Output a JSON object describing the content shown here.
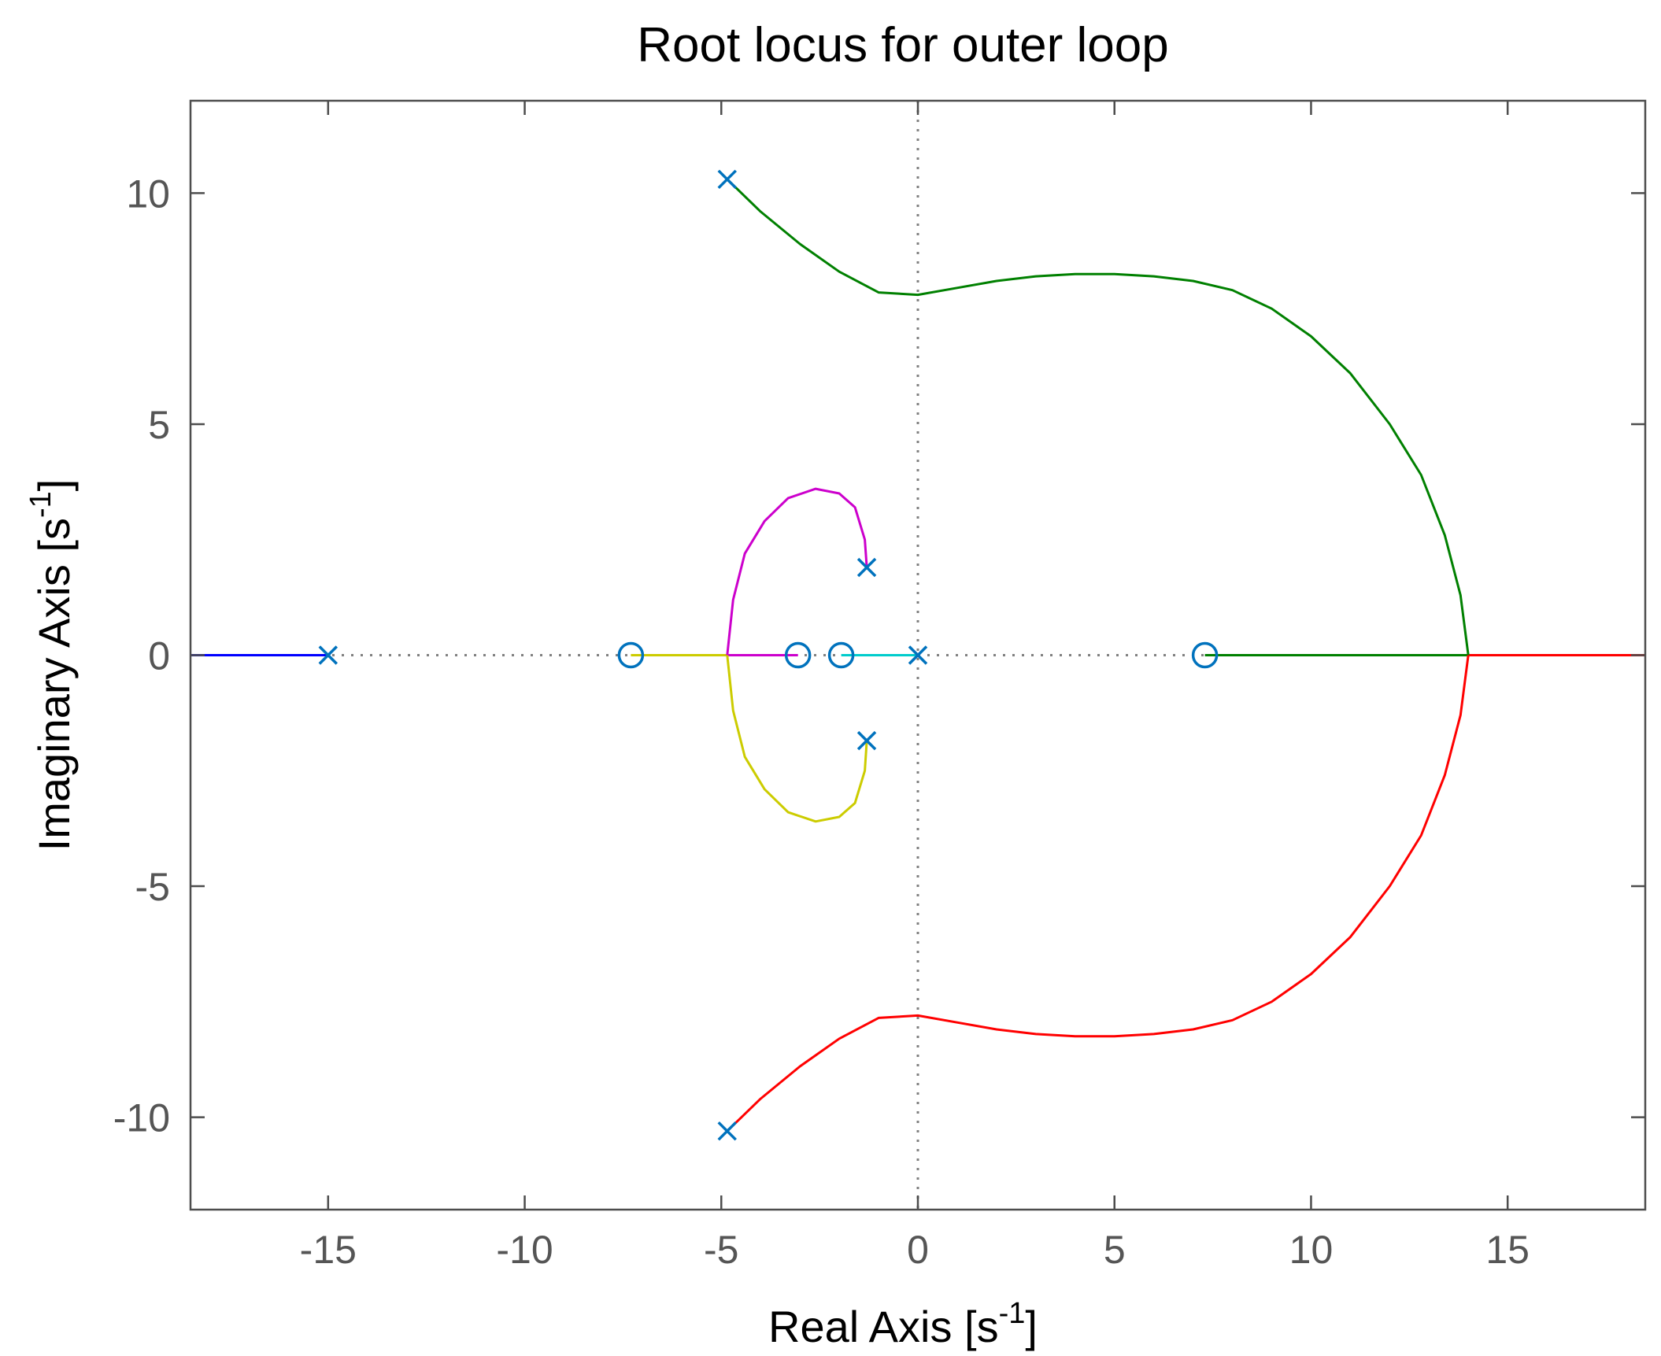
{
  "chart_data": {
    "type": "scatter",
    "title": "Root locus for outer loop",
    "xlabel": {
      "base": "Real Axis [s",
      "exponent": "-1",
      "suffix": "]"
    },
    "ylabel": {
      "base": "Imaginary Axis [s",
      "exponent": "-1",
      "suffix": "]"
    },
    "xlim": [
      -18.5,
      18.5
    ],
    "ylim": [
      -12,
      12
    ],
    "xticks": [
      -15,
      -10,
      -5,
      0,
      5,
      10,
      15
    ],
    "yticks": [
      -10,
      -5,
      0,
      5,
      10
    ],
    "xtick_labels": [
      "-15",
      "-10",
      "-5",
      "0",
      "5",
      "10",
      "15"
    ],
    "ytick_labels": [
      "-10",
      "-5",
      "0",
      "5",
      "10"
    ],
    "grid": false,
    "poles": [
      {
        "x": -15,
        "y": 0
      },
      {
        "x": -4.85,
        "y": 10.3
      },
      {
        "x": -4.85,
        "y": -10.3
      },
      {
        "x": -1.3,
        "y": 1.9
      },
      {
        "x": -1.3,
        "y": -1.85
      },
      {
        "x": 0,
        "y": 0
      }
    ],
    "zeros": [
      {
        "x": -7.3,
        "y": 0
      },
      {
        "x": -3.05,
        "y": 0
      },
      {
        "x": -1.95,
        "y": 0
      },
      {
        "x": 7.3,
        "y": 0
      }
    ],
    "marker_color": "#0072BD",
    "zero_axis_color": "#808080",
    "branches": [
      {
        "color": "#0000ff",
        "x": [
          -15,
          -18.5
        ],
        "y": [
          0,
          0
        ]
      },
      {
        "color": "#cccc00",
        "x": [
          -7.3,
          -4.85
        ],
        "y": [
          0,
          0
        ]
      },
      {
        "color": "#cc00cc",
        "x": [
          -4.85,
          -3.05
        ],
        "y": [
          0,
          0
        ]
      },
      {
        "color": "#00cccc",
        "x": [
          0,
          -1.95
        ],
        "y": [
          0,
          0
        ]
      },
      {
        "color": "#008000",
        "x": [
          7.3,
          14
        ],
        "y": [
          0,
          0
        ]
      },
      {
        "color": "#ff0000",
        "x": [
          14,
          18.5
        ],
        "y": [
          0,
          0
        ]
      },
      {
        "color": "#cc00cc",
        "x": [
          -1.3,
          -1.35,
          -1.6,
          -2.0,
          -2.6,
          -3.3,
          -3.9,
          -4.4,
          -4.7,
          -4.85
        ],
        "y": [
          1.9,
          2.5,
          3.2,
          3.5,
          3.6,
          3.4,
          2.9,
          2.2,
          1.2,
          0
        ]
      },
      {
        "color": "#cccc00",
        "x": [
          -1.3,
          -1.35,
          -1.6,
          -2.0,
          -2.6,
          -3.3,
          -3.9,
          -4.4,
          -4.7,
          -4.85
        ],
        "y": [
          -1.85,
          -2.5,
          -3.2,
          -3.5,
          -3.6,
          -3.4,
          -2.9,
          -2.2,
          -1.2,
          0
        ]
      },
      {
        "color": "#008000",
        "x": [
          -4.85,
          -4.0,
          -3.0,
          -2.0,
          -1.0,
          0.0,
          1.0,
          2.0,
          3.0,
          4.0,
          5.0,
          6.0,
          7.0,
          8.0,
          9.0,
          10.0,
          11.0,
          12.0,
          12.8,
          13.4,
          13.8,
          14.0
        ],
        "y": [
          10.3,
          9.6,
          8.9,
          8.3,
          7.85,
          7.8,
          7.95,
          8.1,
          8.2,
          8.25,
          8.25,
          8.2,
          8.1,
          7.9,
          7.5,
          6.9,
          6.1,
          5.0,
          3.9,
          2.6,
          1.3,
          0
        ]
      },
      {
        "color": "#ff0000",
        "x": [
          -4.85,
          -4.0,
          -3.0,
          -2.0,
          -1.0,
          0.0,
          1.0,
          2.0,
          3.0,
          4.0,
          5.0,
          6.0,
          7.0,
          8.0,
          9.0,
          10.0,
          11.0,
          12.0,
          12.8,
          13.4,
          13.8,
          14.0
        ],
        "y": [
          -10.3,
          -9.6,
          -8.9,
          -8.3,
          -7.85,
          -7.8,
          -7.95,
          -8.1,
          -8.2,
          -8.25,
          -8.25,
          -8.2,
          -8.1,
          -7.9,
          -7.5,
          -6.9,
          -6.1,
          -5.0,
          -3.9,
          -2.6,
          -1.3,
          0
        ]
      }
    ]
  }
}
